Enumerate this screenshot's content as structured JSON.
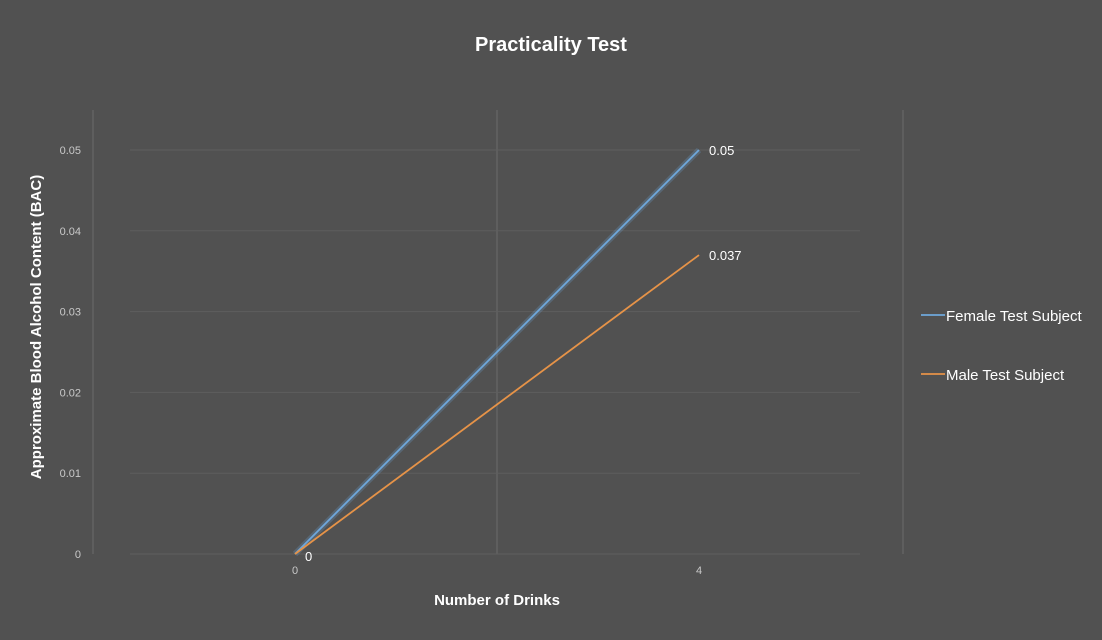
{
  "chart_data": {
    "type": "line",
    "title": "Practicality Test",
    "xlabel": "Number of Drinks",
    "ylabel": "Approximate Blood Alcohol Content (BAC)",
    "x": [
      0,
      4
    ],
    "x_ticks": [
      "0",
      "4"
    ],
    "y_ticks": [
      "0",
      "0.01",
      "0.02",
      "0.03",
      "0.04",
      "0.05"
    ],
    "ylim": [
      0,
      0.05
    ],
    "grid": true,
    "legend_position": "right",
    "series": [
      {
        "name": "Female Test Subject",
        "values": [
          0,
          0.05
        ],
        "labels": [
          "0",
          "0.05"
        ],
        "color": "#6fa8dc"
      },
      {
        "name": "Male Test Subject",
        "values": [
          0,
          0.037
        ],
        "labels": [
          "",
          "0.037"
        ],
        "color": "#e69348"
      }
    ]
  }
}
